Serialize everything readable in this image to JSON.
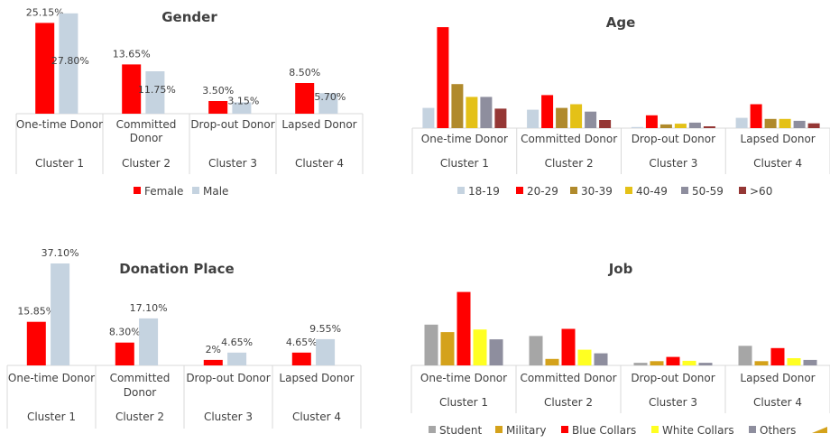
{
  "chart_data": [
    {
      "type": "bar",
      "title": "Gender",
      "categories": [
        "One-time Donor",
        "Committed Donor",
        "Drop-out Donor",
        "Lapsed Donor"
      ],
      "groups": [
        "Cluster 1",
        "Cluster 2",
        "Cluster 3",
        "Cluster 4"
      ],
      "series": [
        {
          "name": "Female",
          "values": [
            25.15,
            13.65,
            3.5,
            8.5
          ],
          "labels": [
            "25.15%",
            "13.65%",
            "3.50%",
            "8.50%"
          ]
        },
        {
          "name": "Male",
          "values": [
            27.8,
            11.75,
            3.15,
            5.7
          ],
          "labels": [
            "27.80%",
            "11.75%",
            "3.15%",
            "5.70%"
          ]
        }
      ],
      "colors": [
        "#ff0000",
        "#c5d3e0"
      ],
      "legend": "bottom"
    },
    {
      "type": "bar",
      "title": "Age",
      "categories": [
        "One-time Donor",
        "Committed Donor",
        "Drop-out Donor",
        "Lapsed Donor"
      ],
      "groups": [
        "Cluster 1",
        "Cluster 2",
        "Cluster 3",
        "Cluster 4"
      ],
      "series": [
        {
          "name": "18-19",
          "values": [
            5.5,
            5,
            0.3,
            2.8
          ]
        },
        {
          "name": "20-29",
          "values": [
            27.5,
            9,
            3.5,
            6.5
          ]
        },
        {
          "name": "30-39",
          "values": [
            12,
            5.5,
            1,
            2.5
          ]
        },
        {
          "name": "40-49",
          "values": [
            8.5,
            6.5,
            1.2,
            2.5
          ]
        },
        {
          "name": "50-59",
          "values": [
            8.5,
            4.5,
            1.5,
            2
          ]
        },
        {
          "name": ">60",
          "values": [
            5.3,
            2.2,
            0.5,
            1.3
          ]
        }
      ],
      "colors": [
        "#c5d3e0",
        "#ff0000",
        "#b08a2c",
        "#e4c117",
        "#8e8e9e",
        "#953735"
      ],
      "legend": "bottom"
    },
    {
      "type": "bar",
      "title": "Donation Place",
      "categories": [
        "One-time Donor",
        "Committed Donor",
        "Drop-out Donor",
        "Lapsed Donor"
      ],
      "groups": [
        "Cluster 1",
        "Cluster 2",
        "Cluster 3",
        "Cluster 4"
      ],
      "series": [
        {
          "values": [
            15.85,
            8.3,
            2,
            4.65
          ],
          "labels": [
            "15.85%",
            "8.30%",
            "2%",
            "4.65%"
          ]
        },
        {
          "values": [
            37.1,
            17.1,
            4.65,
            9.55
          ],
          "labels": [
            "37.10%",
            "17.10%",
            "4.65%",
            "9.55%"
          ]
        }
      ],
      "colors": [
        "#ff0000",
        "#c5d3e0"
      ]
    },
    {
      "type": "bar",
      "title": "Job",
      "categories": [
        "One-time Donor",
        "Committed Donor",
        "Drop-out Donor",
        "Lapsed Donor"
      ],
      "groups": [
        "Cluster 1",
        "Cluster 2",
        "Cluster 3",
        "Cluster 4"
      ],
      "series": [
        {
          "name": "Student",
          "values": [
            12.5,
            9,
            0.8,
            6
          ]
        },
        {
          "name": "Military",
          "values": [
            10.2,
            2,
            1.3,
            1.3
          ]
        },
        {
          "name": "Blue Collars",
          "values": [
            22.5,
            11.2,
            2.6,
            5.3
          ]
        },
        {
          "name": "White Collars",
          "values": [
            11,
            4.8,
            1.4,
            2.2
          ]
        },
        {
          "name": "Others",
          "values": [
            8,
            3.7,
            0.8,
            1.7
          ]
        }
      ],
      "colors": [
        "#a6a6a6",
        "#d4a21b",
        "#ff0000",
        "#ffff22",
        "#8e8e9e"
      ],
      "legend": "bottom"
    }
  ]
}
